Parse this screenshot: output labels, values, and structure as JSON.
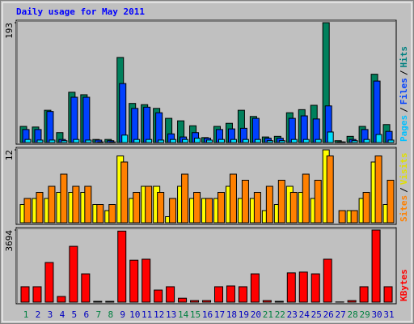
{
  "chart_data": {
    "type": "bar",
    "title": "Daily usage for May 2011",
    "legend_separator": "/",
    "categories": [
      "1",
      "2",
      "3",
      "4",
      "5",
      "6",
      "7",
      "8",
      "9",
      "10",
      "11",
      "12",
      "13",
      "14",
      "15",
      "16",
      "17",
      "18",
      "19",
      "20",
      "21",
      "22",
      "23",
      "24",
      "25",
      "26",
      "27",
      "28",
      "29",
      "30",
      "31"
    ],
    "category_colors": [
      "#008040",
      "#0000c0",
      "#0000c0",
      "#0000c0",
      "#0000c0",
      "#0000c0",
      "#008040",
      "#008040",
      "#0000c0",
      "#0000c0",
      "#0000c0",
      "#0000c0",
      "#0000c0",
      "#008040",
      "#008040",
      "#0000c0",
      "#0000c0",
      "#0000c0",
      "#0000c0",
      "#0000c0",
      "#008040",
      "#008040",
      "#0000c0",
      "#0000c0",
      "#0000c0",
      "#0000c0",
      "#0000c0",
      "#008040",
      "#008040",
      "#0000c0",
      "#0000c0"
    ],
    "panels": [
      {
        "ylim": [
          0,
          193
        ],
        "yticks": [
          193
        ],
        "series": [
          {
            "name": "Hits",
            "color": "#00805c",
            "label_color": "#008080",
            "values": [
              26,
              25,
              52,
              16,
              81,
              77,
              5,
              5,
              137,
              63,
              61,
              55,
              39,
              35,
              27,
              8,
              26,
              31,
              52,
              42,
              9,
              10,
              48,
              53,
              60,
              193,
              3,
              10,
              26,
              110,
              29
            ]
          },
          {
            "name": "Files",
            "color": "#0040ff",
            "label_color": "#0040ff",
            "values": [
              21,
              21,
              50,
              5,
              73,
              73,
              4,
              3,
              95,
              55,
              57,
              48,
              14,
              9,
              16,
              7,
              21,
              22,
              23,
              39,
              7,
              7,
              39,
              43,
              38,
              59,
              1,
              5,
              21,
              99,
              18
            ]
          },
          {
            "name": "Pages",
            "color": "#00e0ff",
            "label_color": "#00c0ff",
            "values": [
              5,
              4,
              4,
              3,
              5,
              4,
              1,
              1,
              12,
              5,
              5,
              4,
              5,
              5,
              7,
              4,
              5,
              5,
              5,
              5,
              3,
              3,
              5,
              5,
              5,
              17,
              1,
              3,
              5,
              13,
              4
            ]
          }
        ]
      },
      {
        "ylim": [
          0,
          12
        ],
        "yticks": [
          12
        ],
        "series": [
          {
            "name": "Visits",
            "color": "#ffff00",
            "label_color": "#e0e000",
            "values": [
              3,
              4,
              4,
              5,
              5,
              5,
              3,
              2,
              11,
              4,
              6,
              6,
              1,
              6,
              4,
              4,
              4,
              6,
              4,
              4,
              2,
              3,
              6,
              5,
              4,
              12,
              0,
              2,
              4,
              10,
              3
            ]
          },
          {
            "name": "Sites",
            "color": "#ff8000",
            "label_color": "#ff8000",
            "values": [
              4,
              5,
              6,
              8,
              6,
              6,
              3,
              3,
              10,
              5,
              6,
              5,
              4,
              8,
              5,
              4,
              5,
              8,
              7,
              5,
              6,
              7,
              5,
              8,
              7,
              11,
              2,
              2,
              5,
              11,
              7
            ]
          }
        ]
      },
      {
        "ylim": [
          0,
          3694
        ],
        "yticks": [
          3694
        ],
        "series": [
          {
            "name": "KBytes",
            "color": "#ff0000",
            "label_color": "#ff0000",
            "values": [
              790,
              790,
              2030,
              290,
              2860,
              1450,
              40,
              40,
              3640,
              2150,
              2200,
              620,
              790,
              200,
              80,
              80,
              790,
              830,
              790,
              1450,
              80,
              40,
              1500,
              1540,
              1450,
              2200,
              10,
              80,
              790,
              3694,
              790
            ]
          }
        ]
      }
    ]
  }
}
